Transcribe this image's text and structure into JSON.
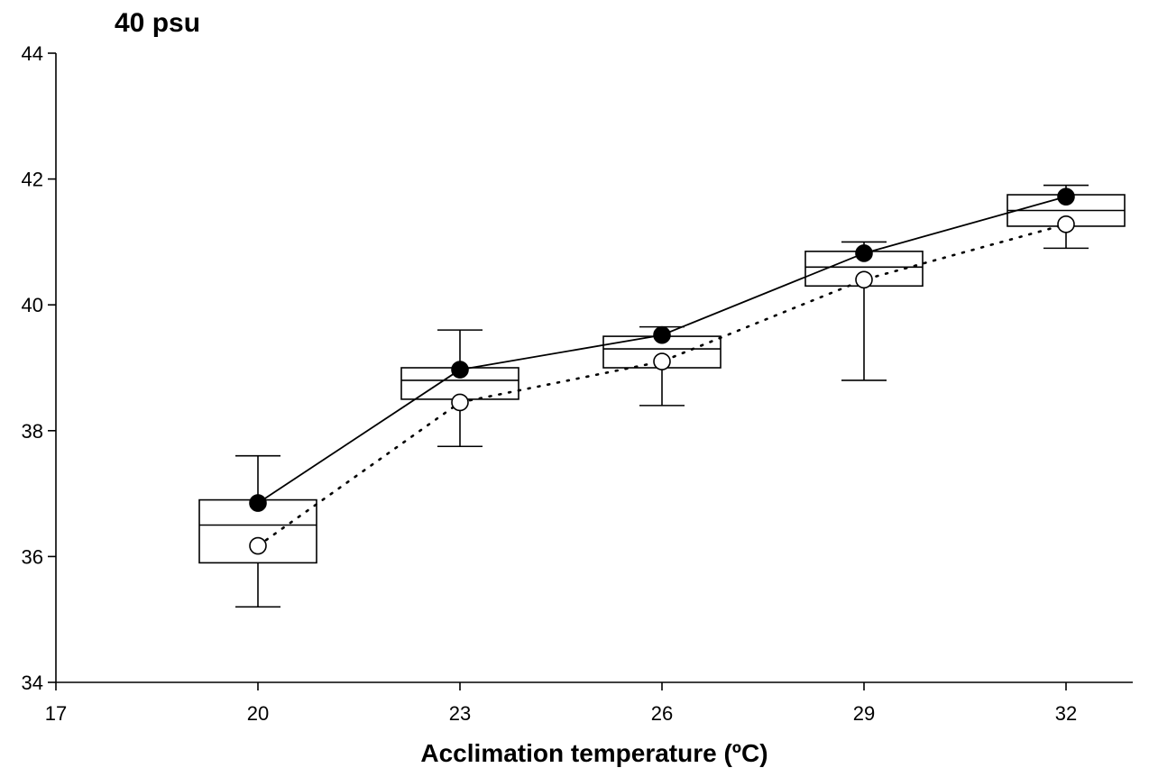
{
  "chart_data": {
    "type": "box",
    "title": "40 psu",
    "xlabel": "Acclimation temperature (ºC)",
    "ylabel": "",
    "xlim": [
      17,
      33
    ],
    "ylim": [
      34,
      44
    ],
    "xticks": [
      "17",
      "20",
      "23",
      "26",
      "29",
      "32"
    ],
    "yticks": [
      "34",
      "36",
      "38",
      "40",
      "42",
      "44"
    ],
    "grid": false,
    "legend": "none",
    "boxes": [
      {
        "x": 20,
        "whisker_low": 35.2,
        "q1": 35.9,
        "median": 36.5,
        "q3": 36.9,
        "whisker_high": 37.6
      },
      {
        "x": 23,
        "whisker_low": 37.75,
        "q1": 38.5,
        "median": 38.8,
        "q3": 39.0,
        "whisker_high": 39.6
      },
      {
        "x": 26,
        "whisker_low": 38.4,
        "q1": 39.0,
        "median": 39.3,
        "q3": 39.5,
        "whisker_high": 39.65
      },
      {
        "x": 29,
        "whisker_low": 38.8,
        "q1": 40.3,
        "median": 40.6,
        "q3": 40.85,
        "whisker_high": 41.0
      },
      {
        "x": 32,
        "whisker_low": 40.9,
        "q1": 41.25,
        "median": 41.5,
        "q3": 41.75,
        "whisker_high": 41.9
      }
    ],
    "series": [
      {
        "style": "solid",
        "marker": "filled-circle",
        "x": [
          20,
          23,
          26,
          29,
          32
        ],
        "y": [
          36.85,
          38.97,
          39.52,
          40.82,
          41.72
        ]
      },
      {
        "style": "dotted",
        "marker": "open-circle",
        "x": [
          20,
          23,
          26,
          29,
          32
        ],
        "y": [
          36.17,
          38.45,
          39.1,
          40.4,
          41.28
        ]
      }
    ]
  }
}
